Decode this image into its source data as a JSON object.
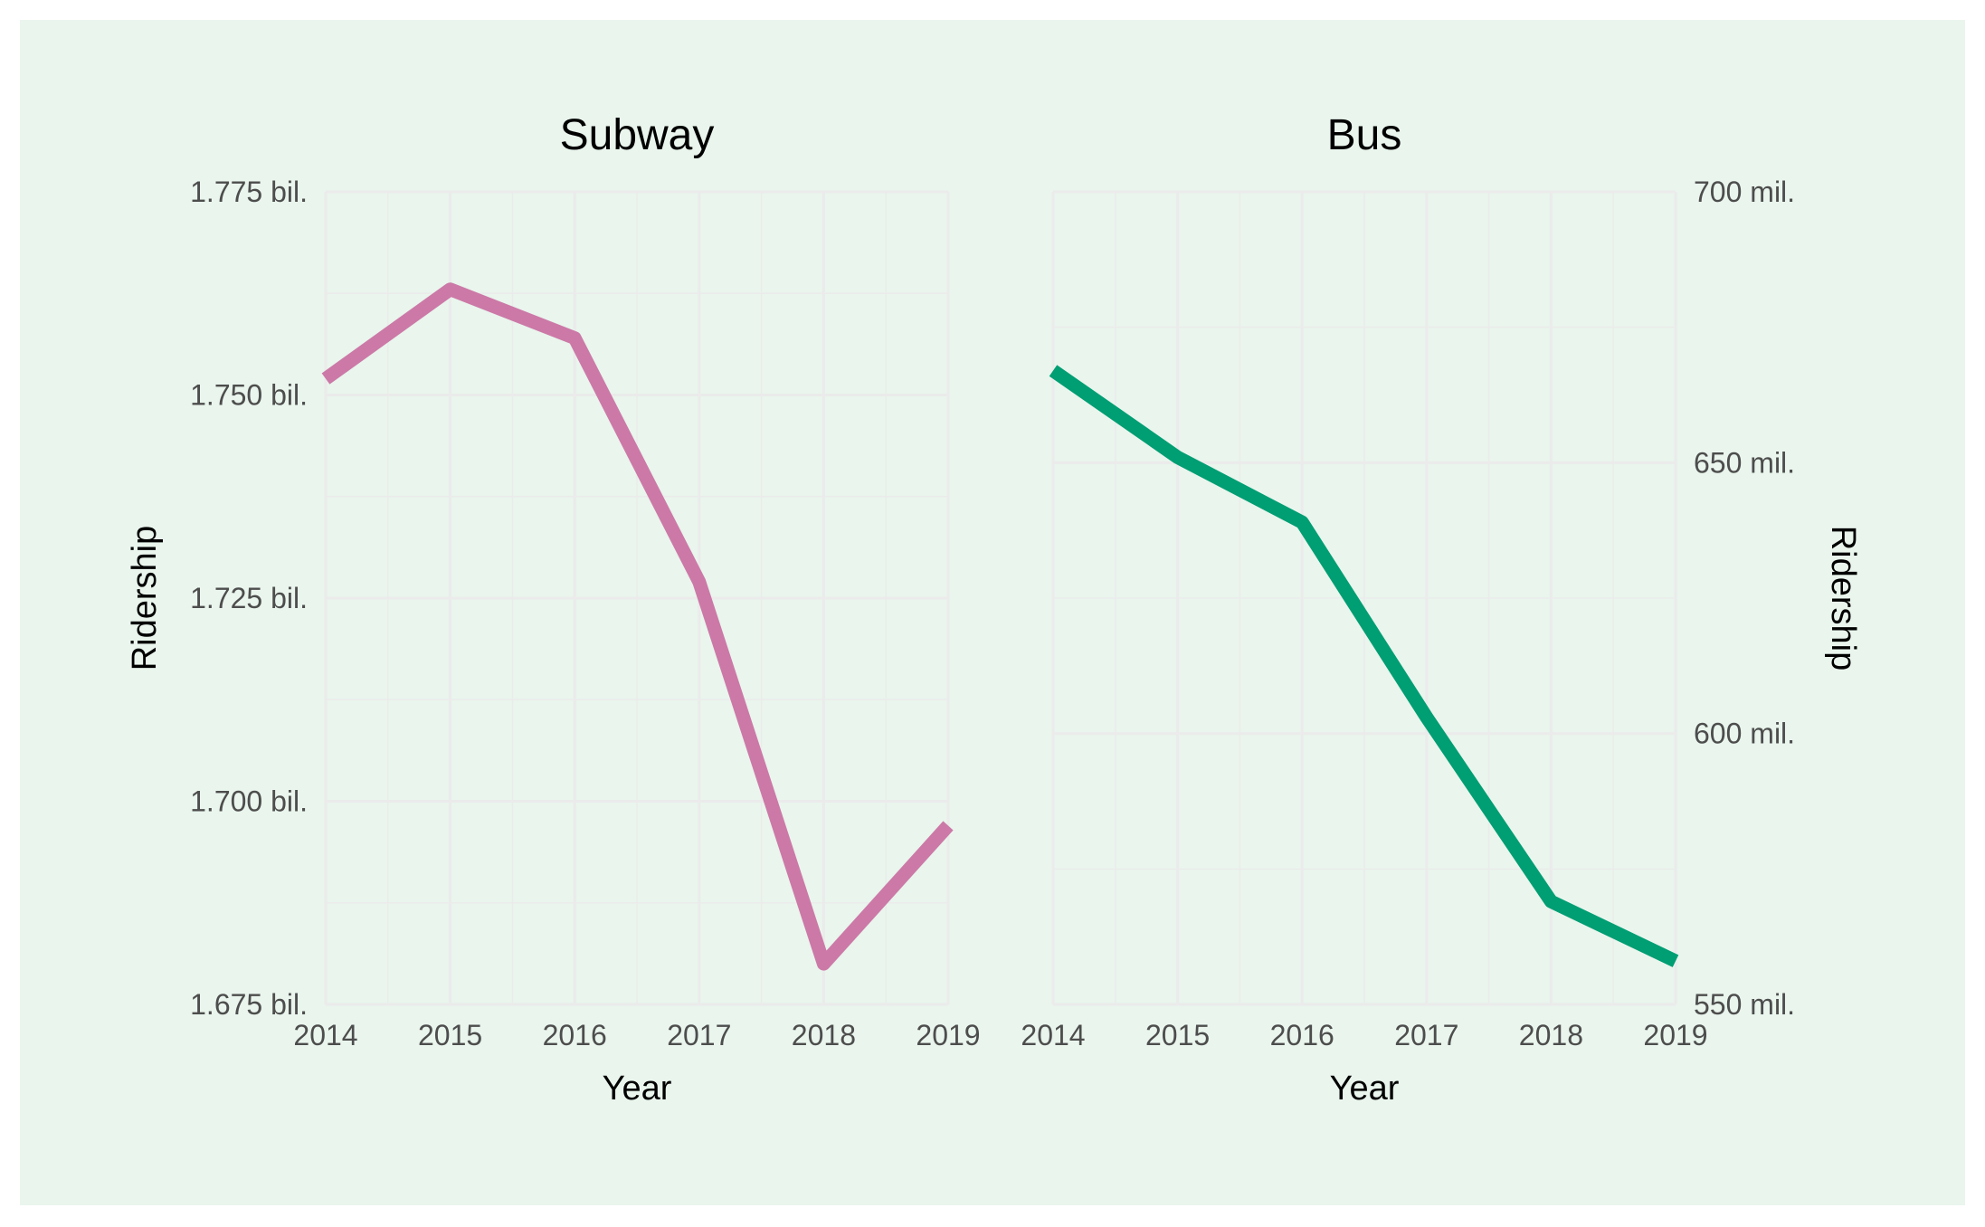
{
  "chart_data": [
    {
      "type": "line",
      "title": "Subway",
      "xlabel": "Year",
      "ylabel": "Ridership",
      "x": [
        2014,
        2015,
        2016,
        2017,
        2018,
        2019
      ],
      "y": [
        1.752,
        1.763,
        1.757,
        1.727,
        1.68,
        1.697
      ],
      "y_unit": "bil.",
      "ylim": [
        1.675,
        1.775
      ],
      "y_ticks": [
        1.675,
        1.7,
        1.725,
        1.75,
        1.775
      ],
      "y_tick_labels": [
        "1.675 bil.",
        "1.700 bil.",
        "1.725 bil.",
        "1.750 bil.",
        "1.775 bil."
      ],
      "x_tick_labels": [
        "2014",
        "2015",
        "2016",
        "2017",
        "2018",
        "2019"
      ],
      "y_axis_side": "left",
      "color": "#cc79a7",
      "grid": true
    },
    {
      "type": "line",
      "title": "Bus",
      "xlabel": "Year",
      "ylabel": "Ridership",
      "x": [
        2014,
        2015,
        2016,
        2017,
        2018,
        2019
      ],
      "y": [
        667,
        651,
        639,
        603,
        569,
        558
      ],
      "y_unit": "mil.",
      "ylim": [
        550,
        700
      ],
      "y_ticks": [
        550,
        600,
        650,
        700
      ],
      "y_tick_labels": [
        "550 mil.",
        "600 mil.",
        "650 mil.",
        "700 mil."
      ],
      "x_tick_labels": [
        "2014",
        "2015",
        "2016",
        "2017",
        "2018",
        "2019"
      ],
      "y_axis_side": "right",
      "color": "#009e73",
      "grid": true
    }
  ],
  "colors": {
    "background": "#e9f5ed",
    "grid": "#ebebeb"
  }
}
